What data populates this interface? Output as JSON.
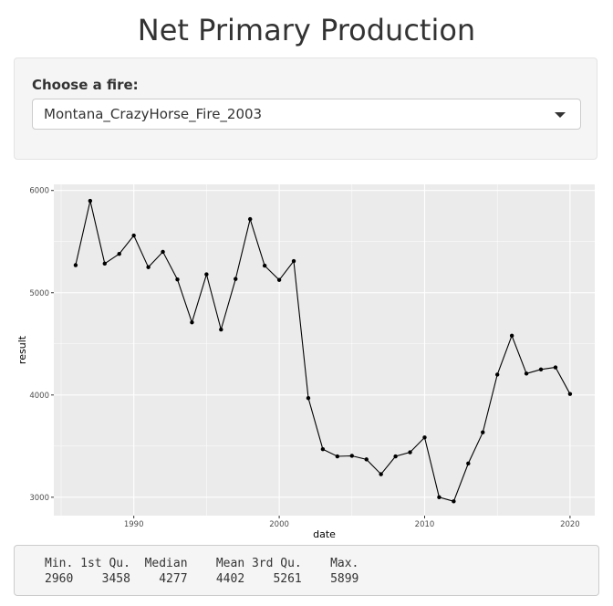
{
  "page": {
    "title": "Net Primary Production"
  },
  "selector": {
    "label": "Choose a fire:",
    "selected": "Montana_CrazyHorse_Fire_2003"
  },
  "summary": {
    "header": "Min. 1st Qu.  Median    Mean 3rd Qu.    Max.",
    "values": "2960    3458    4277    4402    5261    5899"
  },
  "colors": {
    "panel_bg": "#ebebeb",
    "grid": "#ffffff",
    "line": "#000000"
  },
  "chart_data": {
    "type": "line",
    "xlabel": "date",
    "ylabel": "result",
    "xlim": [
      1984.5,
      2021.7
    ],
    "ylim": [
      2820,
      6060
    ],
    "xticks": [
      1990,
      2000,
      2010,
      2020
    ],
    "yticks": [
      3000,
      4000,
      5000,
      6000
    ],
    "grid": true,
    "markers": true,
    "x": [
      1986,
      1987,
      1988,
      1989,
      1990,
      1991,
      1992,
      1993,
      1994,
      1995,
      1996,
      1997,
      1998,
      1999,
      2000,
      2001,
      2002,
      2003,
      2004,
      2005,
      2006,
      2007,
      2008,
      2009,
      2010,
      2011,
      2012,
      2013,
      2014,
      2015,
      2016,
      2017,
      2018,
      2019,
      2020
    ],
    "values": [
      5270,
      5899,
      5285,
      5380,
      5560,
      5250,
      5400,
      5130,
      4710,
      5180,
      4640,
      5135,
      5720,
      5265,
      5125,
      5310,
      3970,
      3470,
      3400,
      3405,
      3370,
      3225,
      3400,
      3440,
      3585,
      3000,
      2960,
      3330,
      3635,
      4200,
      4580,
      4210,
      4250,
      4270,
      4010
    ]
  }
}
